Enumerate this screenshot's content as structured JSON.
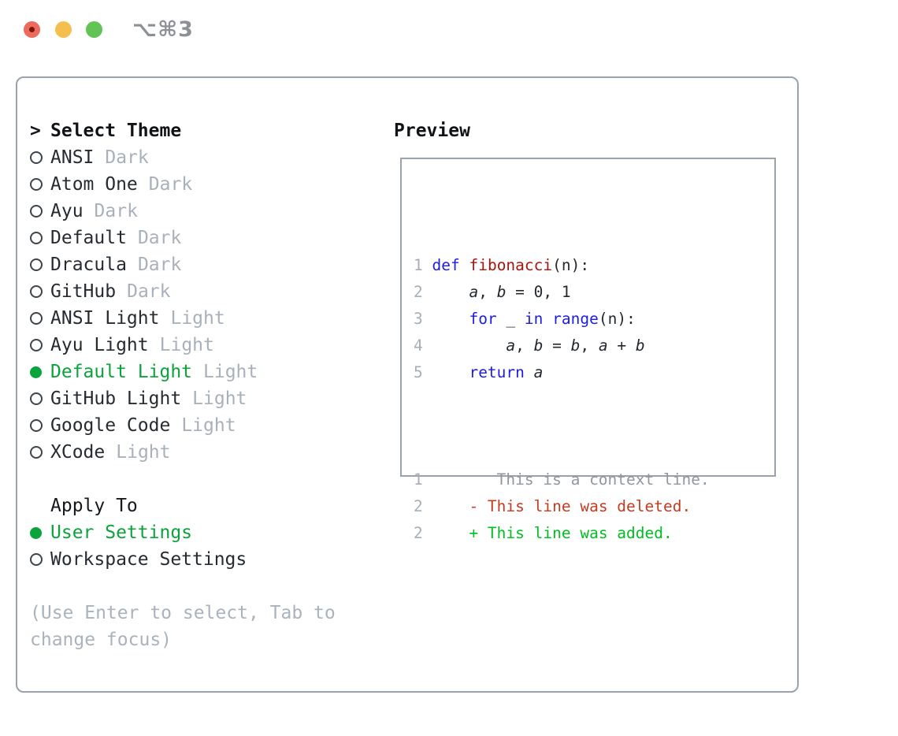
{
  "window": {
    "title": "⌥⌘3"
  },
  "traffic_lights": {
    "close": "close-button",
    "minimize": "minimize-button",
    "zoom": "zoom-button"
  },
  "theme_panel": {
    "cursor": ">",
    "header": "Select Theme",
    "items": [
      {
        "name": "ANSI",
        "variant": "Dark",
        "selected": false
      },
      {
        "name": "Atom One",
        "variant": "Dark",
        "selected": false
      },
      {
        "name": "Ayu",
        "variant": "Dark",
        "selected": false
      },
      {
        "name": "Default",
        "variant": "Dark",
        "selected": false
      },
      {
        "name": "Dracula",
        "variant": "Dark",
        "selected": false
      },
      {
        "name": "GitHub",
        "variant": "Dark",
        "selected": false
      },
      {
        "name": "ANSI Light",
        "variant": "Light",
        "selected": false
      },
      {
        "name": "Ayu Light",
        "variant": "Light",
        "selected": false
      },
      {
        "name": "Default Light",
        "variant": "Light",
        "selected": true
      },
      {
        "name": "GitHub Light",
        "variant": "Light",
        "selected": false
      },
      {
        "name": "Google Code",
        "variant": "Light",
        "selected": false
      },
      {
        "name": "XCode",
        "variant": "Light",
        "selected": false
      }
    ]
  },
  "apply_panel": {
    "header": "Apply To",
    "options": [
      {
        "label": "User Settings",
        "selected": true
      },
      {
        "label": "Workspace Settings",
        "selected": false
      }
    ]
  },
  "hint": "(Use Enter to select, Tab to change focus)",
  "preview": {
    "header": "Preview",
    "code_lines": [
      [
        {
          "s": "ln",
          "t": "1 "
        },
        {
          "s": "kw",
          "t": "def"
        },
        {
          "s": "pl",
          "t": " "
        },
        {
          "s": "fn",
          "t": "fibonacci"
        },
        {
          "s": "pl",
          "t": "(n):"
        }
      ],
      [
        {
          "s": "ln",
          "t": "2 "
        },
        {
          "s": "pl",
          "t": "    "
        },
        {
          "s": "var",
          "t": "a"
        },
        {
          "s": "pl",
          "t": ", "
        },
        {
          "s": "var",
          "t": "b"
        },
        {
          "s": "pl",
          "t": " = 0, 1"
        }
      ],
      [
        {
          "s": "ln",
          "t": "3 "
        },
        {
          "s": "pl",
          "t": "    "
        },
        {
          "s": "kw",
          "t": "for"
        },
        {
          "s": "pl",
          "t": " _ "
        },
        {
          "s": "kw",
          "t": "in"
        },
        {
          "s": "pl",
          "t": " "
        },
        {
          "s": "kw",
          "t": "range"
        },
        {
          "s": "pl",
          "t": "(n):"
        }
      ],
      [
        {
          "s": "ln",
          "t": "4 "
        },
        {
          "s": "pl",
          "t": "        "
        },
        {
          "s": "var",
          "t": "a"
        },
        {
          "s": "pl",
          "t": ", "
        },
        {
          "s": "var",
          "t": "b"
        },
        {
          "s": "pl",
          "t": " = "
        },
        {
          "s": "var",
          "t": "b"
        },
        {
          "s": "pl",
          "t": ", "
        },
        {
          "s": "var",
          "t": "a"
        },
        {
          "s": "pl",
          "t": " + "
        },
        {
          "s": "var",
          "t": "b"
        }
      ],
      [
        {
          "s": "ln",
          "t": "5 "
        },
        {
          "s": "pl",
          "t": "    "
        },
        {
          "s": "kw",
          "t": "return"
        },
        {
          "s": "pl",
          "t": " "
        },
        {
          "s": "var",
          "t": "a"
        }
      ]
    ],
    "diff_lines": [
      [
        {
          "s": "ln",
          "t": "1"
        },
        {
          "s": "ctx",
          "t": "        This is a context line."
        }
      ],
      [
        {
          "s": "ln",
          "t": "2"
        },
        {
          "s": "pl",
          "t": "     "
        },
        {
          "s": "del",
          "t": "- This line was deleted."
        }
      ],
      [
        {
          "s": "ln",
          "t": "2"
        },
        {
          "s": "pl",
          "t": "     "
        },
        {
          "s": "add",
          "t": "+ This line was added."
        }
      ]
    ]
  },
  "colors": {
    "accent_green": "#0ba33c",
    "diff_added_green": "#00bd22",
    "diff_removed_red": "#c43b20",
    "keyword_blue": "#1d1ce4",
    "function_red": "#a5150e",
    "muted_gray": "#a8b1bb",
    "line_number_gray": "#a6aeb8",
    "border_gray": "#9aa2ac",
    "traffic_red": "#ee6a5e",
    "traffic_yellow": "#f5bf4f",
    "traffic_green": "#61c454"
  }
}
